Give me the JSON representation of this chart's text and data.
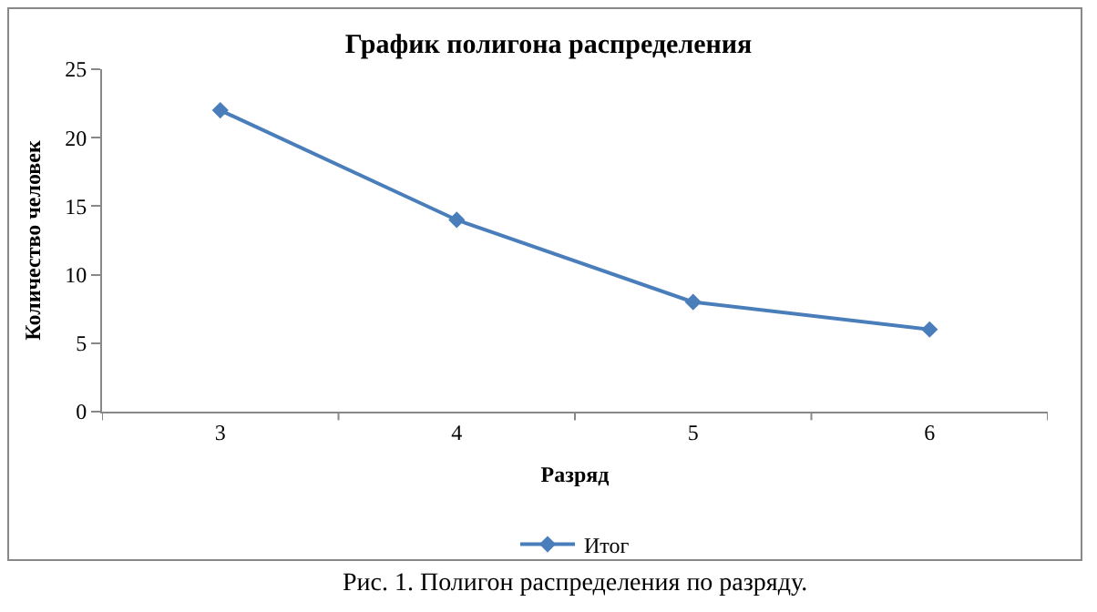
{
  "chart_data": {
    "type": "line",
    "title": "График полигона распределения",
    "xlabel": "Разряд",
    "ylabel": "Количество человек",
    "categories": [
      "3",
      "4",
      "5",
      "6"
    ],
    "series": [
      {
        "name": "Итог",
        "color": "#4a7ebb",
        "values": [
          22,
          14,
          8,
          6
        ]
      }
    ],
    "ylim": [
      0,
      25
    ],
    "yticks": [
      0,
      5,
      10,
      15,
      20,
      25
    ],
    "grid": false,
    "legend": "bottom",
    "marker": "diamond",
    "line_style": "solid",
    "annotations": [
      "Рис. 1. Полигон распределения по разряду."
    ]
  }
}
